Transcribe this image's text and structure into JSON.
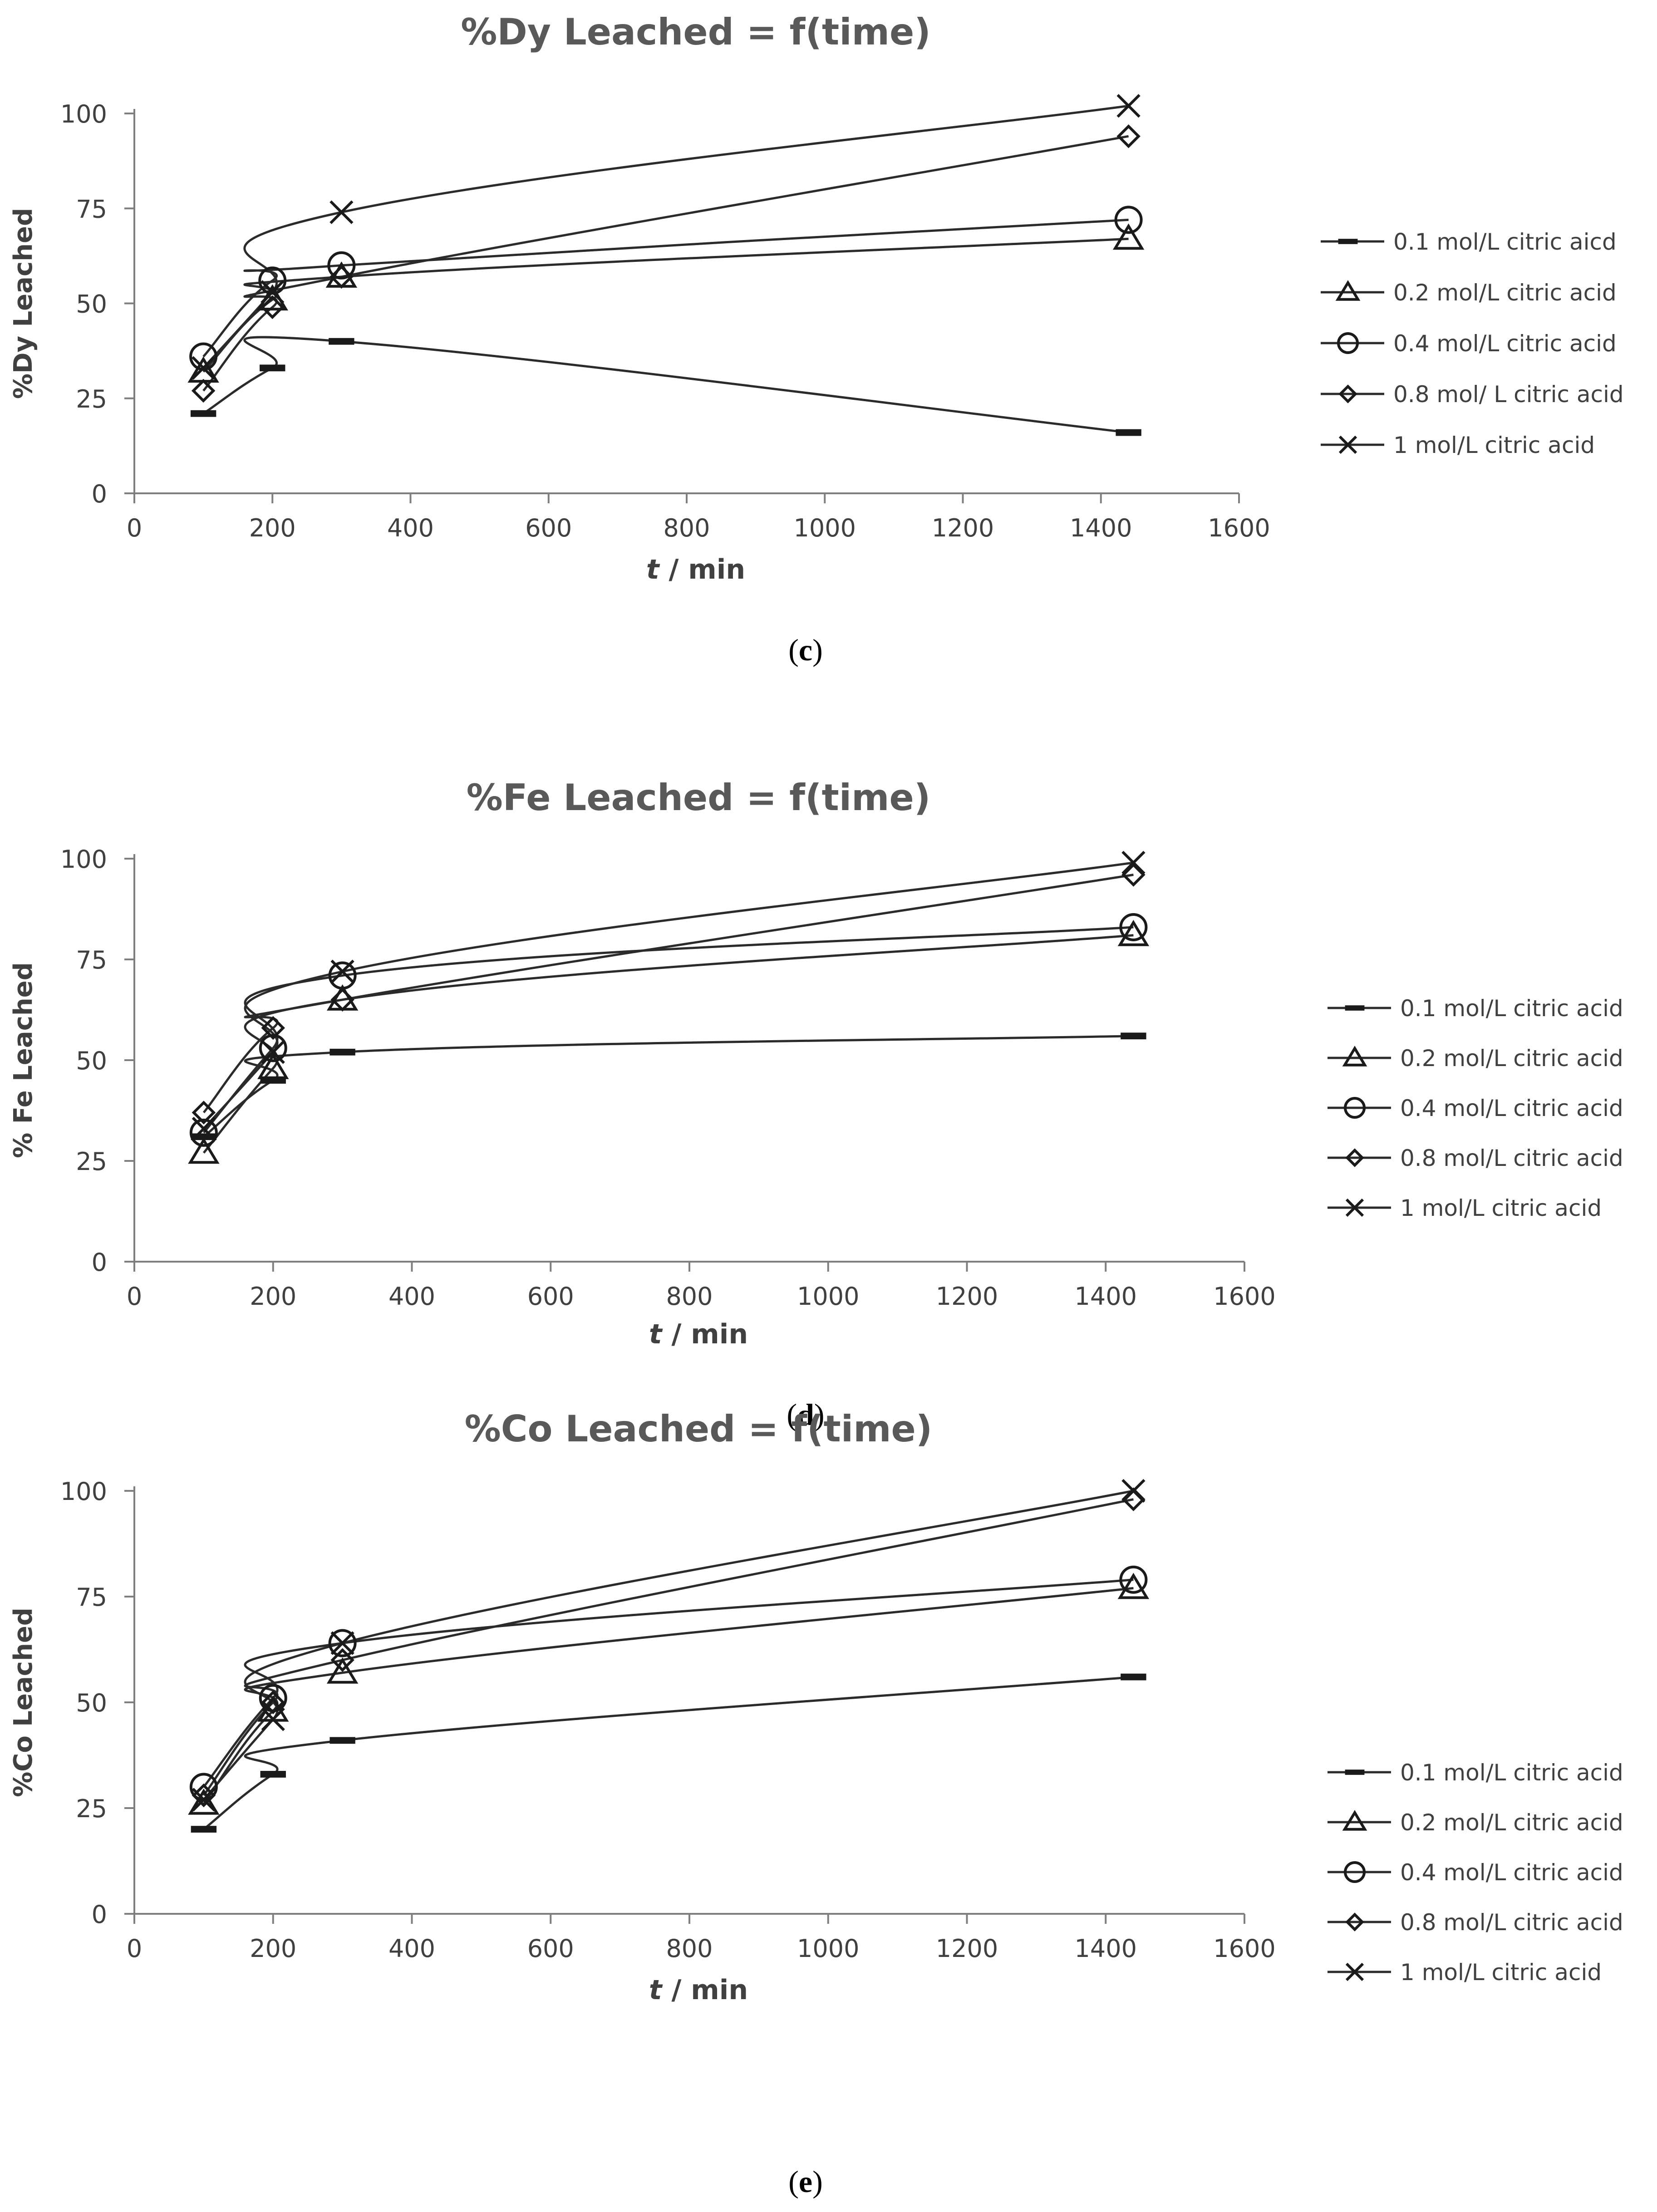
{
  "chart_data": [
    {
      "type": "line",
      "title": "%Dy Leached = f(time)",
      "xlabel_var": "t",
      "xlabel_unit": " / min",
      "ylabel": "%Dy Leached",
      "xlim": [
        0,
        1600
      ],
      "ylim": [
        0,
        100
      ],
      "xticks": [
        0,
        200,
        400,
        600,
        800,
        1000,
        1200,
        1400,
        1600
      ],
      "yticks": [
        0,
        25,
        50,
        75,
        100
      ],
      "caption_letter": "c",
      "x": [
        100,
        200,
        300,
        1440
      ],
      "series": [
        {
          "name": "0.1 mol/L citric aicd",
          "marker": "dash",
          "values": [
            21,
            33,
            40,
            16
          ]
        },
        {
          "name": "0.2 mol/L citric acid",
          "marker": "triangle",
          "values": [
            32,
            51,
            57,
            67
          ]
        },
        {
          "name": "0.4 mol/L citric acid",
          "marker": "circle",
          "values": [
            36,
            56,
            60,
            72
          ]
        },
        {
          "name": "0.8 mol/ L citric acid",
          "marker": "diamond",
          "values": [
            27,
            49,
            57,
            94
          ]
        },
        {
          "name": "1 mol/L citric acid",
          "marker": "cross",
          "values": [
            33,
            53,
            74,
            102
          ]
        }
      ]
    },
    {
      "type": "line",
      "title": "%Fe Leached = f(time)",
      "xlabel_var": "t",
      "xlabel_unit": " / min",
      "ylabel": "% Fe Leached",
      "xlim": [
        0,
        1600
      ],
      "ylim": [
        0,
        100
      ],
      "xticks": [
        0,
        200,
        400,
        600,
        800,
        1000,
        1200,
        1400,
        1600
      ],
      "yticks": [
        0,
        25,
        50,
        75,
        100
      ],
      "caption_letter": "d",
      "x": [
        100,
        200,
        300,
        1440
      ],
      "series": [
        {
          "name": "0.1 mol/L citric acid",
          "marker": "dash",
          "values": [
            31,
            45,
            52,
            56
          ]
        },
        {
          "name": "0.2 mol/L citric acid",
          "marker": "triangle",
          "values": [
            27,
            48,
            65,
            81
          ]
        },
        {
          "name": "0.4 mol/L citric acid",
          "marker": "circle",
          "values": [
            32,
            53,
            71,
            83
          ]
        },
        {
          "name": "0.8 mol/L citric acid",
          "marker": "diamond",
          "values": [
            37,
            58,
            65,
            96
          ]
        },
        {
          "name": "1 mol/L citric acid",
          "marker": "cross",
          "values": [
            33,
            52,
            72,
            99
          ]
        }
      ]
    },
    {
      "type": "line",
      "title": "%Co Leached = f(time)",
      "xlabel_var": "t",
      "xlabel_unit": " / min",
      "ylabel": "%Co Leached",
      "xlim": [
        0,
        1600
      ],
      "ylim": [
        0,
        100
      ],
      "xticks": [
        0,
        200,
        400,
        600,
        800,
        1000,
        1200,
        1400,
        1600
      ],
      "yticks": [
        0,
        25,
        50,
        75,
        100
      ],
      "caption_letter": "e",
      "x": [
        100,
        200,
        300,
        1440
      ],
      "series": [
        {
          "name": "0.1 mol/L citric acid",
          "marker": "dash",
          "values": [
            20,
            33,
            41,
            56
          ]
        },
        {
          "name": "0.2 mol/L citric acid",
          "marker": "triangle",
          "values": [
            26,
            48,
            57,
            77
          ]
        },
        {
          "name": "0.4 mol/L citric acid",
          "marker": "circle",
          "values": [
            30,
            51,
            64,
            79
          ]
        },
        {
          "name": "0.8 mol/L citric acid",
          "marker": "diamond",
          "values": [
            28,
            50,
            60,
            98
          ]
        },
        {
          "name": "1 mol/L citric acid",
          "marker": "cross",
          "values": [
            27,
            46,
            64,
            100
          ]
        }
      ]
    }
  ]
}
